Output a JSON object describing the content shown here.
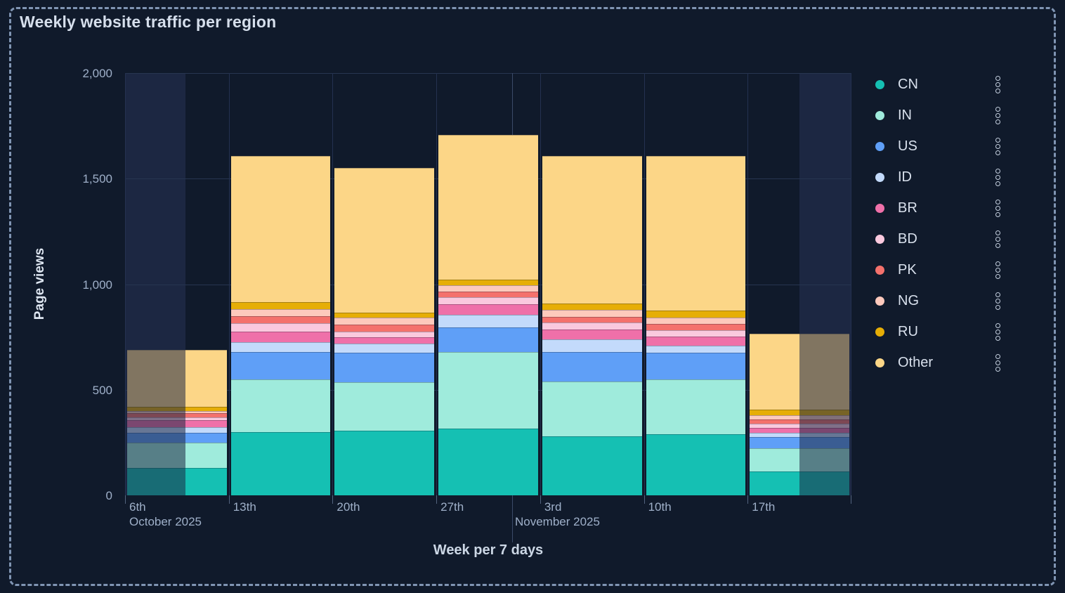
{
  "title": "Weekly website traffic per region",
  "chart_data": {
    "type": "bar",
    "stacked": true,
    "xlabel": "Week per 7 days",
    "ylabel": "Page views",
    "ylim": [
      0,
      2000
    ],
    "grid": true,
    "legend_position": "right",
    "y_ticks": [
      {
        "label": "0",
        "value": 0
      },
      {
        "label": "500",
        "value": 500
      },
      {
        "label": "1,000",
        "value": 1000
      },
      {
        "label": "1,500",
        "value": 1500
      },
      {
        "label": "2,000",
        "value": 2000
      }
    ],
    "categories": [
      "6th",
      "13th",
      "20th",
      "27th",
      "3rd",
      "10th",
      "17th"
    ],
    "month_start_label": "October 2025",
    "month_boundary": {
      "label": "November 2025",
      "after_category_index": 3,
      "fraction_into_band": 0.73
    },
    "partial_weeks": {
      "first_faded_left_fraction": 0.58,
      "last_faded_right_fraction": 0.5
    },
    "series": [
      {
        "name": "CN",
        "color": "#15c0b3",
        "values": [
          130,
          300,
          305,
          315,
          280,
          290,
          113
        ]
      },
      {
        "name": "IN",
        "color": "#9febdc",
        "values": [
          120,
          250,
          230,
          365,
          260,
          260,
          110
        ]
      },
      {
        "name": "US",
        "color": "#5f9ff7",
        "values": [
          45,
          130,
          140,
          115,
          140,
          125,
          53
        ]
      },
      {
        "name": "ID",
        "color": "#c3dafb",
        "values": [
          27,
          45,
          45,
          60,
          60,
          33,
          20
        ]
      },
      {
        "name": "BR",
        "color": "#ef70a9",
        "values": [
          33,
          50,
          30,
          50,
          45,
          43,
          23
        ]
      },
      {
        "name": "BD",
        "color": "#fac9de",
        "values": [
          13,
          40,
          27,
          33,
          33,
          30,
          20
        ]
      },
      {
        "name": "PK",
        "color": "#f4716c",
        "values": [
          20,
          33,
          33,
          27,
          27,
          30,
          20
        ]
      },
      {
        "name": "NG",
        "color": "#fdc9bc",
        "values": [
          13,
          33,
          33,
          30,
          33,
          30,
          20
        ]
      },
      {
        "name": "RU",
        "color": "#e6ae06",
        "values": [
          17,
          33,
          23,
          27,
          30,
          33,
          27
        ]
      },
      {
        "name": "Other",
        "color": "#fcd687",
        "values": [
          270,
          695,
          686,
          686,
          700,
          735,
          360
        ]
      }
    ],
    "legend_row_icon": "kebab-dots-icon"
  }
}
